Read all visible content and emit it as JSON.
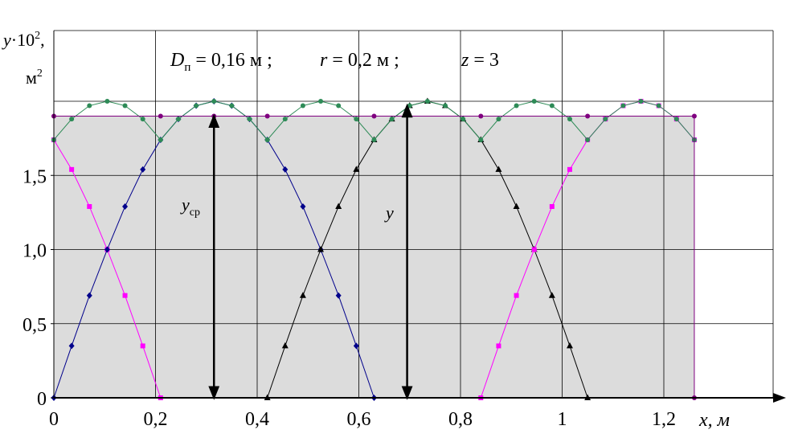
{
  "chart_data": {
    "type": "line",
    "y_axis_label": {
      "base": "y",
      "middle": "·10",
      "sup": "2",
      "comma": ",",
      "unit": "м",
      "unit_sup": "2"
    },
    "x_axis_label": "x, м",
    "xlim": [
      0,
      1.26
    ],
    "ylim": [
      0,
      2.0
    ],
    "x_ticks": [
      {
        "v": 0,
        "label": "0"
      },
      {
        "v": 0.2,
        "label": "0,2"
      },
      {
        "v": 0.4,
        "label": "0,4"
      },
      {
        "v": 0.6,
        "label": "0,6"
      },
      {
        "v": 0.8,
        "label": "0,8"
      },
      {
        "v": 1.0,
        "label": "1"
      },
      {
        "v": 1.2,
        "label": "1,2"
      }
    ],
    "y_ticks": [
      {
        "v": 0,
        "label": "0"
      },
      {
        "v": 0.5,
        "label": "0,5"
      },
      {
        "v": 1.0,
        "label": "1,0"
      },
      {
        "v": 1.5,
        "label": "1,5"
      }
    ],
    "params": [
      {
        "sym": "D",
        "sub": "п",
        "rest": " = 0,16 м ;"
      },
      {
        "sym": "r",
        "sub": "",
        "rest": " = 0,2 м ;"
      },
      {
        "sym": "z",
        "sub": "",
        "rest": " = 3"
      }
    ],
    "annotation_ycp": {
      "sym": "y",
      "sub": "ср",
      "x": 0.315
    },
    "annotation_y": {
      "sym": "y",
      "x": 0.695
    },
    "y_mean": 1.9,
    "shaded_region_x": [
      0,
      1.26
    ],
    "series": [
      {
        "color": "#ff00ff",
        "marker": "square",
        "points": [
          [
            0,
            1.74
          ],
          [
            0.035,
            1.54
          ],
          [
            0.07,
            1.29
          ],
          [
            0.105,
            1.0
          ],
          [
            0.14,
            0.69
          ],
          [
            0.175,
            0.35
          ],
          [
            0.21,
            0.0
          ]
        ]
      },
      {
        "color": "#00008b",
        "marker": "diamond",
        "points": [
          [
            0,
            0
          ],
          [
            0.035,
            0.35
          ],
          [
            0.07,
            0.69
          ],
          [
            0.105,
            1.0
          ],
          [
            0.14,
            1.29
          ],
          [
            0.175,
            1.54
          ],
          [
            0.21,
            1.74
          ],
          [
            0.245,
            1.88
          ],
          [
            0.28,
            1.97
          ],
          [
            0.315,
            2.0
          ],
          [
            0.35,
            1.97
          ],
          [
            0.385,
            1.88
          ],
          [
            0.42,
            1.74
          ],
          [
            0.455,
            1.54
          ],
          [
            0.49,
            1.29
          ],
          [
            0.525,
            1.0
          ],
          [
            0.56,
            0.69
          ],
          [
            0.595,
            0.35
          ],
          [
            0.63,
            0.0
          ]
        ]
      },
      {
        "color": "#000000",
        "marker": "triangle",
        "points": [
          [
            0.42,
            0
          ],
          [
            0.455,
            0.35
          ],
          [
            0.49,
            0.69
          ],
          [
            0.525,
            1.0
          ],
          [
            0.56,
            1.29
          ],
          [
            0.595,
            1.54
          ],
          [
            0.63,
            1.74
          ],
          [
            0.665,
            1.88
          ],
          [
            0.7,
            1.97
          ],
          [
            0.735,
            2.0
          ],
          [
            0.77,
            1.97
          ],
          [
            0.805,
            1.88
          ],
          [
            0.84,
            1.74
          ],
          [
            0.875,
            1.54
          ],
          [
            0.91,
            1.29
          ],
          [
            0.945,
            1.0
          ],
          [
            0.98,
            0.69
          ],
          [
            1.015,
            0.35
          ],
          [
            1.05,
            0.0
          ]
        ]
      },
      {
        "color": "#ff00ff",
        "marker": "square",
        "points": [
          [
            0.84,
            0
          ],
          [
            0.875,
            0.35
          ],
          [
            0.91,
            0.69
          ],
          [
            0.945,
            1.0
          ],
          [
            0.98,
            1.29
          ],
          [
            1.015,
            1.54
          ],
          [
            1.05,
            1.74
          ],
          [
            1.085,
            1.88
          ],
          [
            1.12,
            1.97
          ],
          [
            1.155,
            2.0
          ],
          [
            1.19,
            1.97
          ],
          [
            1.225,
            1.88
          ],
          [
            1.26,
            1.74
          ]
        ]
      },
      {
        "color": "#2e8b57",
        "marker": "circle",
        "points": [
          [
            0,
            1.74
          ],
          [
            0.035,
            1.88
          ],
          [
            0.07,
            1.97
          ],
          [
            0.105,
            2.0
          ],
          [
            0.14,
            1.97
          ],
          [
            0.175,
            1.88
          ],
          [
            0.21,
            1.74
          ],
          [
            0.245,
            1.88
          ],
          [
            0.28,
            1.97
          ],
          [
            0.315,
            2.0
          ],
          [
            0.35,
            1.97
          ],
          [
            0.385,
            1.88
          ],
          [
            0.42,
            1.74
          ],
          [
            0.455,
            1.88
          ],
          [
            0.49,
            1.97
          ],
          [
            0.525,
            2.0
          ],
          [
            0.56,
            1.97
          ],
          [
            0.595,
            1.88
          ],
          [
            0.63,
            1.74
          ],
          [
            0.665,
            1.88
          ],
          [
            0.7,
            1.97
          ],
          [
            0.735,
            2.0
          ],
          [
            0.77,
            1.97
          ],
          [
            0.805,
            1.88
          ],
          [
            0.84,
            1.74
          ],
          [
            0.875,
            1.88
          ],
          [
            0.91,
            1.97
          ],
          [
            0.945,
            2.0
          ],
          [
            0.98,
            1.97
          ],
          [
            1.015,
            1.88
          ],
          [
            1.05,
            1.74
          ],
          [
            1.085,
            1.88
          ],
          [
            1.12,
            1.97
          ],
          [
            1.155,
            2.0
          ],
          [
            1.19,
            1.97
          ],
          [
            1.225,
            1.88
          ],
          [
            1.26,
            1.74
          ]
        ]
      },
      {
        "color": "#800080",
        "marker": "circle",
        "mean_line": true,
        "points": [
          [
            0,
            1.9
          ],
          [
            0.21,
            1.9
          ],
          [
            0.315,
            1.9
          ],
          [
            0.42,
            1.9
          ],
          [
            0.63,
            1.9
          ],
          [
            0.84,
            1.9
          ],
          [
            1.05,
            1.9
          ],
          [
            1.26,
            1.9
          ]
        ]
      }
    ]
  }
}
